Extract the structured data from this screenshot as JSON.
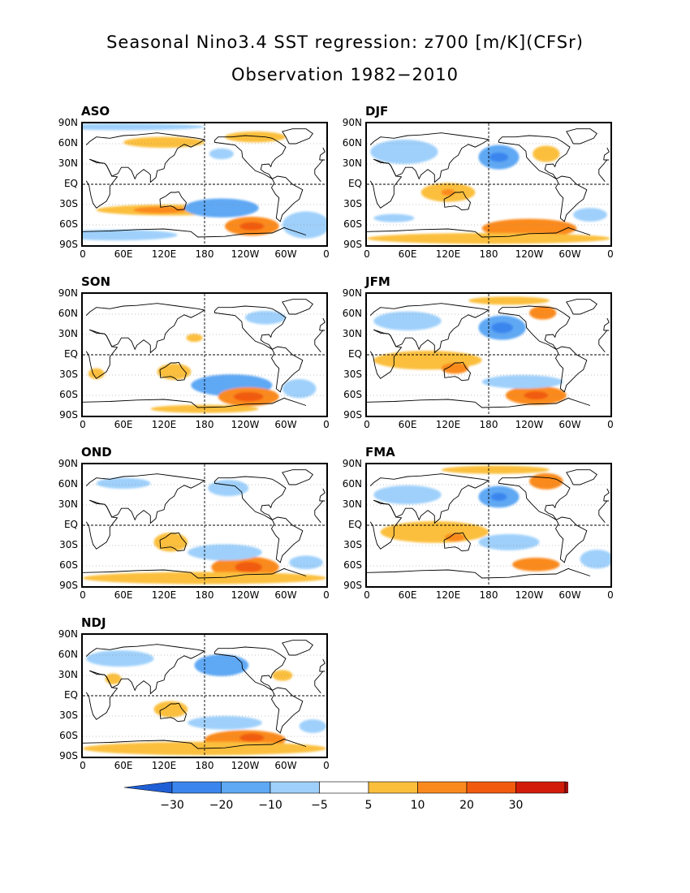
{
  "title_line1": "Seasonal Nino3.4 SST regression: z700 [m/K](CFSr)",
  "title_line2": "Observation 1982−2010",
  "lat_ticks": [
    "90N",
    "60N",
    "30N",
    "EQ",
    "30S",
    "60S",
    "90S"
  ],
  "lon_ticks": [
    "0",
    "60E",
    "120E",
    "180",
    "120W",
    "60W",
    "0"
  ],
  "colorbar": {
    "labels": [
      "−30",
      "−20",
      "−10",
      "−5",
      "5",
      "10",
      "20",
      "30"
    ],
    "colors": [
      "#1f5fd6",
      "#3a86ee",
      "#5ea8f4",
      "#9fd0fb",
      "#ffffff",
      "#fbbf3c",
      "#fb8a1e",
      "#f25a0e",
      "#d21c0a",
      "#9b0f0f"
    ]
  },
  "panels": [
    {
      "label": "ASO",
      "blobs": [
        {
          "lon": 130,
          "lat": -38,
          "rx": 110,
          "ry": 8,
          "v": 8
        },
        {
          "lon": 115,
          "lat": -38,
          "rx": 40,
          "ry": 5,
          "v": 12
        },
        {
          "lon": 205,
          "lat": -35,
          "rx": 55,
          "ry": 14,
          "v": -12
        },
        {
          "lon": 250,
          "lat": -62,
          "rx": 40,
          "ry": 14,
          "v": 15
        },
        {
          "lon": 250,
          "lat": -62,
          "rx": 18,
          "ry": 6,
          "v": 25
        },
        {
          "lon": 330,
          "lat": -60,
          "rx": 35,
          "ry": 20,
          "v": -8
        },
        {
          "lon": 120,
          "lat": 62,
          "rx": 60,
          "ry": 8,
          "v": 6
        },
        {
          "lon": 255,
          "lat": 70,
          "rx": 45,
          "ry": 8,
          "v": 7
        },
        {
          "lon": 205,
          "lat": 45,
          "rx": 18,
          "ry": 8,
          "v": -7
        },
        {
          "lon": 50,
          "lat": -75,
          "rx": 90,
          "ry": 8,
          "v": -6
        },
        {
          "lon": 60,
          "lat": 85,
          "rx": 120,
          "ry": 5,
          "v": -6
        }
      ]
    },
    {
      "label": "DJF",
      "blobs": [
        {
          "lon": 195,
          "lat": 40,
          "rx": 30,
          "ry": 18,
          "v": -15
        },
        {
          "lon": 195,
          "lat": 40,
          "rx": 14,
          "ry": 7,
          "v": -25
        },
        {
          "lon": 55,
          "lat": 48,
          "rx": 50,
          "ry": 18,
          "v": -8
        },
        {
          "lon": 120,
          "lat": -12,
          "rx": 40,
          "ry": 14,
          "v": 8
        },
        {
          "lon": 120,
          "lat": -12,
          "rx": 10,
          "ry": 5,
          "v": 14
        },
        {
          "lon": 265,
          "lat": 45,
          "rx": 20,
          "ry": 12,
          "v": 7
        },
        {
          "lon": 240,
          "lat": -65,
          "rx": 70,
          "ry": 14,
          "v": 10
        },
        {
          "lon": 260,
          "lat": -63,
          "rx": 30,
          "ry": 8,
          "v": 16
        },
        {
          "lon": 180,
          "lat": -80,
          "rx": 180,
          "ry": 8,
          "v": 7
        },
        {
          "lon": 40,
          "lat": -50,
          "rx": 30,
          "ry": 6,
          "v": -7
        },
        {
          "lon": 330,
          "lat": -45,
          "rx": 25,
          "ry": 10,
          "v": -7
        }
      ]
    },
    {
      "label": "SON",
      "blobs": [
        {
          "lon": 220,
          "lat": -45,
          "rx": 60,
          "ry": 16,
          "v": -10
        },
        {
          "lon": 245,
          "lat": -62,
          "rx": 45,
          "ry": 14,
          "v": 15
        },
        {
          "lon": 245,
          "lat": -62,
          "rx": 22,
          "ry": 7,
          "v": 25
        },
        {
          "lon": 135,
          "lat": -25,
          "rx": 25,
          "ry": 12,
          "v": 7
        },
        {
          "lon": 320,
          "lat": -50,
          "rx": 25,
          "ry": 14,
          "v": -9
        },
        {
          "lon": 180,
          "lat": -80,
          "rx": 80,
          "ry": 6,
          "v": 7
        },
        {
          "lon": 20,
          "lat": -28,
          "rx": 12,
          "ry": 8,
          "v": 6
        },
        {
          "lon": 165,
          "lat": 25,
          "rx": 12,
          "ry": 6,
          "v": 6
        },
        {
          "lon": 270,
          "lat": 55,
          "rx": 30,
          "ry": 10,
          "v": -6
        }
      ]
    },
    {
      "label": "JFM",
      "blobs": [
        {
          "lon": 200,
          "lat": 40,
          "rx": 35,
          "ry": 18,
          "v": -15
        },
        {
          "lon": 200,
          "lat": 40,
          "rx": 16,
          "ry": 8,
          "v": -25
        },
        {
          "lon": 90,
          "lat": -8,
          "rx": 80,
          "ry": 14,
          "v": 7
        },
        {
          "lon": 130,
          "lat": -20,
          "rx": 20,
          "ry": 8,
          "v": 14
        },
        {
          "lon": 250,
          "lat": -60,
          "rx": 45,
          "ry": 14,
          "v": 13
        },
        {
          "lon": 250,
          "lat": -60,
          "rx": 18,
          "ry": 6,
          "v": 22
        },
        {
          "lon": 260,
          "lat": 62,
          "rx": 20,
          "ry": 10,
          "v": 14
        },
        {
          "lon": 60,
          "lat": 50,
          "rx": 50,
          "ry": 14,
          "v": -8
        },
        {
          "lon": 230,
          "lat": -40,
          "rx": 60,
          "ry": 10,
          "v": -8
        },
        {
          "lon": 210,
          "lat": 80,
          "rx": 60,
          "ry": 6,
          "v": 7
        }
      ]
    },
    {
      "label": "OND",
      "blobs": [
        {
          "lon": 240,
          "lat": -62,
          "rx": 50,
          "ry": 16,
          "v": 13
        },
        {
          "lon": 245,
          "lat": -62,
          "rx": 20,
          "ry": 8,
          "v": 25
        },
        {
          "lon": 210,
          "lat": -40,
          "rx": 55,
          "ry": 12,
          "v": -9
        },
        {
          "lon": 130,
          "lat": -25,
          "rx": 25,
          "ry": 14,
          "v": 8
        },
        {
          "lon": 180,
          "lat": -78,
          "rx": 180,
          "ry": 9,
          "v": 8
        },
        {
          "lon": 215,
          "lat": 55,
          "rx": 30,
          "ry": 12,
          "v": -8
        },
        {
          "lon": 330,
          "lat": -55,
          "rx": 25,
          "ry": 10,
          "v": -7
        },
        {
          "lon": 60,
          "lat": 62,
          "rx": 40,
          "ry": 8,
          "v": -6
        }
      ]
    },
    {
      "label": "FMA",
      "blobs": [
        {
          "lon": 195,
          "lat": 42,
          "rx": 30,
          "ry": 16,
          "v": -15
        },
        {
          "lon": 195,
          "lat": 42,
          "rx": 12,
          "ry": 6,
          "v": -22
        },
        {
          "lon": 265,
          "lat": 65,
          "rx": 25,
          "ry": 12,
          "v": 15
        },
        {
          "lon": 100,
          "lat": -10,
          "rx": 80,
          "ry": 16,
          "v": 7
        },
        {
          "lon": 130,
          "lat": -18,
          "rx": 15,
          "ry": 6,
          "v": 14
        },
        {
          "lon": 250,
          "lat": -58,
          "rx": 35,
          "ry": 10,
          "v": 14
        },
        {
          "lon": 210,
          "lat": -25,
          "rx": 45,
          "ry": 12,
          "v": -8
        },
        {
          "lon": 60,
          "lat": 45,
          "rx": 50,
          "ry": 14,
          "v": -8
        },
        {
          "lon": 190,
          "lat": 82,
          "rx": 80,
          "ry": 6,
          "v": 7
        },
        {
          "lon": 340,
          "lat": -50,
          "rx": 25,
          "ry": 14,
          "v": -8
        }
      ]
    },
    {
      "label": "NDJ",
      "blobs": [
        {
          "lon": 205,
          "lat": 45,
          "rx": 40,
          "ry": 16,
          "v": -10
        },
        {
          "lon": 240,
          "lat": -65,
          "rx": 60,
          "ry": 14,
          "v": 13
        },
        {
          "lon": 250,
          "lat": -62,
          "rx": 18,
          "ry": 6,
          "v": 22
        },
        {
          "lon": 180,
          "lat": -78,
          "rx": 180,
          "ry": 10,
          "v": 8
        },
        {
          "lon": 130,
          "lat": -20,
          "rx": 25,
          "ry": 12,
          "v": 8
        },
        {
          "lon": 210,
          "lat": -40,
          "rx": 55,
          "ry": 10,
          "v": -8
        },
        {
          "lon": 55,
          "lat": 55,
          "rx": 50,
          "ry": 12,
          "v": -8
        },
        {
          "lon": 45,
          "lat": 25,
          "rx": 12,
          "ry": 8,
          "v": 7
        },
        {
          "lon": 340,
          "lat": -45,
          "rx": 20,
          "ry": 10,
          "v": -7
        },
        {
          "lon": 295,
          "lat": 30,
          "rx": 15,
          "ry": 8,
          "v": 6
        }
      ]
    }
  ]
}
